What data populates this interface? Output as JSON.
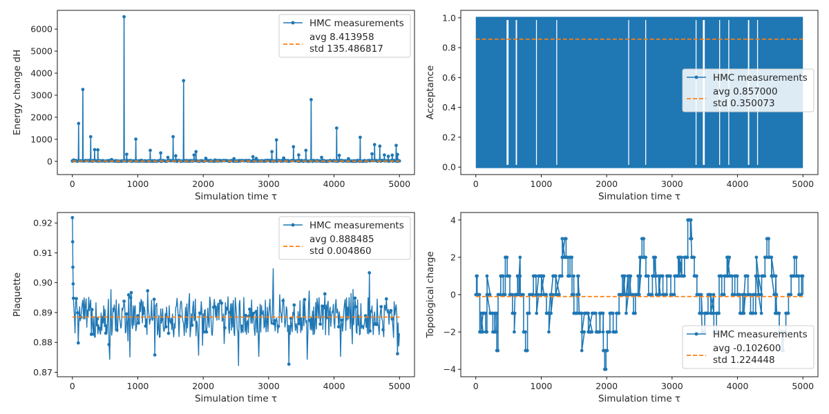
{
  "colors": {
    "series": "#1f77b4",
    "average": "#ff7f0e"
  },
  "chart_data": [
    {
      "type": "line",
      "xlabel": "Simulation time τ",
      "ylabel": "Energy change dH",
      "xlim": [
        -230,
        5230
      ],
      "ylim": [
        -600,
        6850
      ],
      "xticks": [
        0,
        1000,
        2000,
        3000,
        4000,
        5000
      ],
      "yticks": [
        0,
        1000,
        2000,
        3000,
        4000,
        5000,
        6000
      ],
      "legend": {
        "position": "top-right",
        "series_label": "HMC measurements",
        "avg_line": "avg 8.413958",
        "std_line": "std 135.486817"
      },
      "average": 8.413958,
      "baseline": {
        "from": 0,
        "to": 0
      },
      "peaks": [
        [
          20,
          60
        ],
        [
          95,
          1720
        ],
        [
          160,
          3260
        ],
        [
          280,
          1120
        ],
        [
          340,
          530
        ],
        [
          390,
          520
        ],
        [
          600,
          80
        ],
        [
          790,
          6560
        ],
        [
          830,
          320
        ],
        [
          970,
          1010
        ],
        [
          1190,
          500
        ],
        [
          1350,
          380
        ],
        [
          1460,
          180
        ],
        [
          1540,
          1120
        ],
        [
          1580,
          250
        ],
        [
          1700,
          3660
        ],
        [
          1860,
          290
        ],
        [
          1890,
          440
        ],
        [
          2040,
          140
        ],
        [
          2180,
          60
        ],
        [
          2470,
          120
        ],
        [
          2760,
          210
        ],
        [
          2810,
          130
        ],
        [
          3050,
          440
        ],
        [
          3120,
          970
        ],
        [
          3230,
          150
        ],
        [
          3380,
          660
        ],
        [
          3460,
          290
        ],
        [
          3570,
          500
        ],
        [
          3650,
          2800
        ],
        [
          3810,
          180
        ],
        [
          4040,
          1510
        ],
        [
          4080,
          270
        ],
        [
          4220,
          120
        ],
        [
          4400,
          1090
        ],
        [
          4580,
          340
        ],
        [
          4620,
          760
        ],
        [
          4700,
          690
        ],
        [
          4770,
          290
        ],
        [
          4830,
          230
        ],
        [
          4890,
          280
        ],
        [
          4950,
          720
        ],
        [
          4970,
          310
        ]
      ]
    },
    {
      "type": "line",
      "xlabel": "Simulation time τ",
      "ylabel": "Acceptance",
      "xlim": [
        -230,
        5230
      ],
      "ylim": [
        -0.05,
        1.05
      ],
      "xticks": [
        0,
        1000,
        2000,
        3000,
        4000,
        5000
      ],
      "yticks": [
        0.0,
        0.2,
        0.4,
        0.6,
        0.8,
        1.0
      ],
      "legend": {
        "position": "center-right",
        "series_label": "HMC measurements",
        "avg_line": "avg 0.857000",
        "std_line": "std 0.350073"
      },
      "average": 0.857,
      "baseline": {
        "from": 0,
        "to": 1
      },
      "x_range": [
        0,
        5000
      ],
      "gaps": [
        [
          470,
          500
        ],
        [
          610,
          630
        ],
        [
          920,
          930
        ],
        [
          1230,
          1240
        ],
        [
          2330,
          2340
        ],
        [
          2590,
          2600
        ],
        [
          3360,
          3365
        ],
        [
          3470,
          3500
        ],
        [
          3720,
          3730
        ],
        [
          3860,
          3865
        ],
        [
          4160,
          4180
        ],
        [
          4300,
          4310
        ]
      ]
    },
    {
      "type": "line",
      "xlabel": "Simulation time τ",
      "ylabel": "Plaquette",
      "xlim": [
        -230,
        5230
      ],
      "ylim": [
        0.8685,
        0.9235
      ],
      "xticks": [
        0,
        1000,
        2000,
        3000,
        4000,
        5000
      ],
      "yticks": [
        0.87,
        0.88,
        0.89,
        0.9,
        0.91,
        0.92
      ],
      "legend": {
        "position": "top-right",
        "series_label": "HMC measurements",
        "avg_line": "avg 0.888485",
        "std_line": "std 0.004860"
      },
      "average": 0.888485,
      "baseline": {
        "from": 0.8794,
        "to": 0.8978
      },
      "start_values": [
        0.9218,
        0.9137,
        0.9052,
        0.8996,
        0.8948
      ],
      "peaks": [
        [
          3070,
          0.9048
        ],
        [
          4540,
          0.9033
        ],
        [
          2540,
          0.8721
        ],
        [
          3310,
          0.8727
        ],
        [
          570,
          0.8742
        ],
        [
          1930,
          0.8756
        ],
        [
          3590,
          0.8742
        ],
        [
          880,
          0.875
        ],
        [
          2850,
          0.8752
        ],
        [
          4970,
          0.8762
        ],
        [
          4100,
          0.8752
        ],
        [
          1260,
          0.8758
        ]
      ]
    },
    {
      "type": "line",
      "xlabel": "Simulation time τ",
      "ylabel": "Topological charge",
      "xlim": [
        -230,
        5230
      ],
      "ylim": [
        -4.4,
        4.4
      ],
      "xticks": [
        0,
        1000,
        2000,
        3000,
        4000,
        5000
      ],
      "yticks": [
        -4,
        -2,
        0,
        2,
        4
      ],
      "legend": {
        "position": "bottom-right",
        "series_label": "HMC measurements",
        "avg_line": "avg -0.102600",
        "std_line": "std 1.224448"
      },
      "average": -0.1026,
      "steps": [
        [
          0,
          0
        ],
        [
          10,
          1
        ],
        [
          20,
          0
        ],
        [
          60,
          -2
        ],
        [
          110,
          -1
        ],
        [
          150,
          -2
        ],
        [
          170,
          0
        ],
        [
          220,
          -1
        ],
        [
          260,
          -2
        ],
        [
          300,
          -1
        ],
        [
          320,
          -3
        ],
        [
          340,
          0
        ],
        [
          380,
          1
        ],
        [
          420,
          0
        ],
        [
          450,
          2
        ],
        [
          480,
          1
        ],
        [
          520,
          0
        ],
        [
          560,
          -1
        ],
        [
          600,
          0
        ],
        [
          640,
          1
        ],
        [
          680,
          0
        ],
        [
          730,
          -2
        ],
        [
          760,
          -3
        ],
        [
          790,
          -1
        ],
        [
          820,
          0
        ],
        [
          880,
          1
        ],
        [
          920,
          0
        ],
        [
          960,
          1
        ],
        [
          1000,
          1
        ],
        [
          1040,
          0
        ],
        [
          1080,
          -1
        ],
        [
          1140,
          0
        ],
        [
          1180,
          1
        ],
        [
          1220,
          0
        ],
        [
          1280,
          1
        ],
        [
          1320,
          2
        ],
        [
          1360,
          3
        ],
        [
          1380,
          2
        ],
        [
          1410,
          1
        ],
        [
          1440,
          2
        ],
        [
          1470,
          0
        ],
        [
          1500,
          -1
        ],
        [
          1550,
          0
        ],
        [
          1580,
          -1
        ],
        [
          1620,
          -2
        ],
        [
          1660,
          -1
        ],
        [
          1720,
          -2
        ],
        [
          1780,
          -1
        ],
        [
          1840,
          -2
        ],
        [
          1900,
          -1
        ],
        [
          1950,
          -3
        ],
        [
          1970,
          -4
        ],
        [
          1990,
          -3
        ],
        [
          2010,
          -2
        ],
        [
          2050,
          -1
        ],
        [
          2100,
          -2
        ],
        [
          2150,
          -1
        ],
        [
          2190,
          0
        ],
        [
          2240,
          1
        ],
        [
          2280,
          0
        ],
        [
          2330,
          1
        ],
        [
          2370,
          0
        ],
        [
          2410,
          -1
        ],
        [
          2440,
          0
        ],
        [
          2480,
          1
        ],
        [
          2520,
          2
        ],
        [
          2540,
          3
        ],
        [
          2570,
          2
        ],
        [
          2600,
          1
        ],
        [
          2640,
          0
        ],
        [
          2700,
          1
        ],
        [
          2760,
          0
        ],
        [
          2820,
          1
        ],
        [
          2860,
          0
        ],
        [
          2920,
          1
        ],
        [
          2980,
          0
        ],
        [
          3040,
          1
        ],
        [
          3100,
          2
        ],
        [
          3150,
          1
        ],
        [
          3190,
          2
        ],
        [
          3240,
          4
        ],
        [
          3280,
          3
        ],
        [
          3300,
          2
        ],
        [
          3340,
          1
        ],
        [
          3380,
          0
        ],
        [
          3420,
          -1
        ],
        [
          3460,
          -2
        ],
        [
          3500,
          -1
        ],
        [
          3550,
          0
        ],
        [
          3590,
          -1
        ],
        [
          3640,
          -2
        ],
        [
          3680,
          -1
        ],
        [
          3720,
          1
        ],
        [
          3760,
          0
        ],
        [
          3800,
          1
        ],
        [
          3840,
          2
        ],
        [
          3880,
          1
        ],
        [
          3920,
          0
        ],
        [
          3960,
          1
        ],
        [
          4000,
          0
        ],
        [
          4040,
          -1
        ],
        [
          4080,
          0
        ],
        [
          4120,
          1
        ],
        [
          4160,
          0
        ],
        [
          4200,
          -1
        ],
        [
          4240,
          0
        ],
        [
          4280,
          1
        ],
        [
          4320,
          0
        ],
        [
          4370,
          1
        ],
        [
          4420,
          2
        ],
        [
          4450,
          3
        ],
        [
          4480,
          2
        ],
        [
          4520,
          1
        ],
        [
          4560,
          0
        ],
        [
          4600,
          -1
        ],
        [
          4640,
          -2
        ],
        [
          4680,
          -3
        ],
        [
          4700,
          -2
        ],
        [
          4740,
          -1
        ],
        [
          4780,
          0
        ],
        [
          4820,
          1
        ],
        [
          4870,
          2
        ],
        [
          4900,
          1
        ],
        [
          4940,
          0
        ],
        [
          4980,
          1
        ],
        [
          5000,
          0
        ]
      ]
    }
  ]
}
